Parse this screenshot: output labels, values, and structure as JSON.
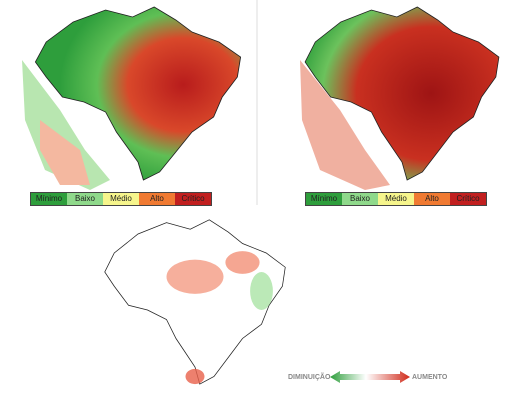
{
  "maps": [
    {
      "legend": [
        "Mínimo",
        "Baixo",
        "Médio",
        "Alto",
        "Crítico"
      ]
    },
    {
      "legend": [
        "Mínimo",
        "Baixo",
        "Médio",
        "Alto",
        "Crítico"
      ]
    }
  ],
  "difference_legend": {
    "left": "DIMINUIÇÃO",
    "right": "AUMENTO"
  }
}
